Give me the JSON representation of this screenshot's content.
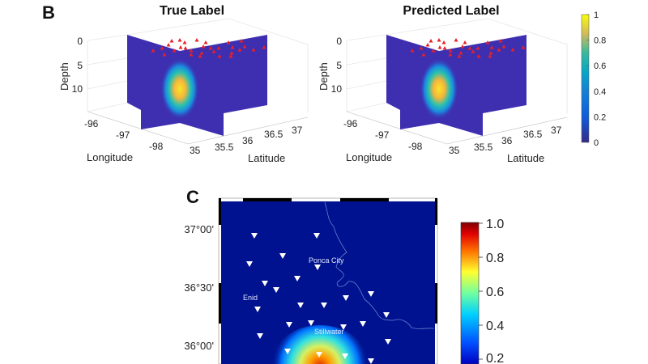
{
  "panel_b": {
    "label": "B",
    "plots": [
      {
        "title": "True Label"
      },
      {
        "title": "Predicted Label"
      }
    ],
    "depth_label": "Depth",
    "longitude_label": "Longitude",
    "latitude_label": "Latitude",
    "depth_ticks": [
      "0",
      "5",
      "10"
    ],
    "longitude_ticks": [
      "-96",
      "-97",
      "-98"
    ],
    "latitude_ticks": [
      "35",
      "35.5",
      "36",
      "36.5",
      "37"
    ],
    "colorbar_ticks": [
      "1",
      "0.8",
      "0.6",
      "0.4",
      "0.2",
      "0"
    ],
    "colormap": "parula",
    "station_color": "#e8202a",
    "plane_color": "#3d2fb0"
  },
  "panel_c": {
    "label": "C",
    "latitude_ticks": [
      "37°00'",
      "36°30'",
      "36°00'"
    ],
    "cities": [
      "Ponca City",
      "Enid",
      "Stillwater"
    ],
    "colorbar_ticks": [
      "1.0",
      "0.8",
      "0.6",
      "0.4",
      "0.2"
    ],
    "colormap": "jet",
    "background_color": "#00128f",
    "station_color": "#ffffff"
  }
}
